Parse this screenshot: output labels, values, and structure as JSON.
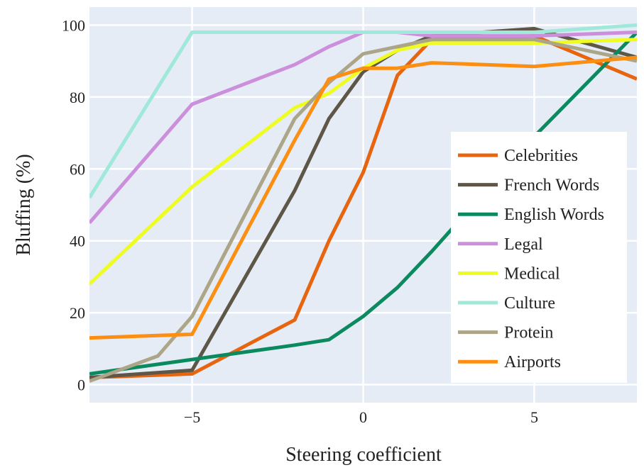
{
  "chart_data": {
    "type": "line",
    "xlabel": "Steering coefficient",
    "ylabel": "Bluffing (%)",
    "xlim": [
      -8,
      8
    ],
    "ylim": [
      -5,
      105
    ],
    "xticks": [
      -5,
      0,
      5
    ],
    "xtick_labels": [
      "−5",
      "0",
      "5"
    ],
    "yticks": [
      0,
      20,
      40,
      60,
      80,
      100
    ],
    "ytick_labels": [
      "0",
      "20",
      "40",
      "60",
      "80",
      "100"
    ],
    "grid": true,
    "legend_position": "right",
    "plot_background": "#e5ecf6",
    "series": [
      {
        "name": "Celebrities",
        "color": "#e8650f",
        "x": [
          -8,
          -5,
          -2,
          -1,
          0,
          1,
          2,
          5,
          8
        ],
        "y": [
          2,
          3,
          18,
          40,
          59,
          86,
          96,
          97,
          85
        ]
      },
      {
        "name": "French Words",
        "color": "#5e5647",
        "x": [
          -8,
          -5,
          -2,
          -1,
          0,
          1,
          2,
          5,
          8
        ],
        "y": [
          2,
          4,
          54,
          74,
          87,
          93,
          97,
          99,
          91
        ]
      },
      {
        "name": "English Words",
        "color": "#0b8a5f",
        "x": [
          -8,
          -5,
          -2,
          -1,
          0,
          1,
          2,
          5,
          8
        ],
        "y": [
          3,
          7,
          11,
          12.5,
          19,
          27,
          37,
          69,
          98
        ]
      },
      {
        "name": "Legal",
        "color": "#cc8fdc",
        "x": [
          -8,
          -5,
          -2,
          -1,
          0,
          1,
          2,
          5,
          8
        ],
        "y": [
          45,
          78,
          89,
          94,
          98,
          98,
          97,
          97,
          98
        ]
      },
      {
        "name": "Medical",
        "color": "#eefc22",
        "x": [
          -8,
          -5,
          -2,
          -1,
          0,
          1,
          2,
          5,
          8
        ],
        "y": [
          28,
          55,
          77,
          81,
          88,
          93,
          95,
          95,
          96
        ]
      },
      {
        "name": "Culture",
        "color": "#a0e8da",
        "x": [
          -8,
          -5,
          -2,
          -1,
          0,
          1,
          2,
          5,
          8
        ],
        "y": [
          52,
          98,
          98,
          98,
          98,
          98,
          98,
          98,
          100
        ]
      },
      {
        "name": "Protein",
        "color": "#aca587",
        "x": [
          -8,
          -6,
          -5,
          -2,
          -1,
          0,
          1,
          2,
          5,
          8
        ],
        "y": [
          1,
          8,
          19,
          74,
          84,
          92,
          94,
          96,
          96,
          90
        ]
      },
      {
        "name": "Airports",
        "color": "#fc8f12",
        "x": [
          -8,
          -5,
          -2,
          -1,
          0,
          1,
          2,
          5,
          8
        ],
        "y": [
          13,
          14,
          68,
          85,
          88,
          88,
          89.5,
          88.5,
          91
        ]
      }
    ]
  }
}
